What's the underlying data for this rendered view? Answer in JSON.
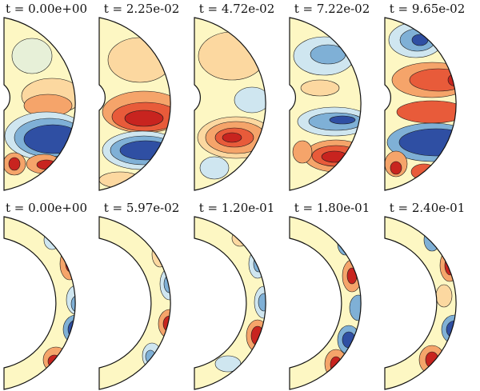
{
  "rows": [
    {
      "panels": [
        {
          "label": "t = 0.00e+00"
        },
        {
          "label": "t = 2.25e-02"
        },
        {
          "label": "t = 4.72e-02"
        },
        {
          "label": "t = 7.22e-02"
        },
        {
          "label": "t = 9.65e-02"
        }
      ]
    },
    {
      "panels": [
        {
          "label": "t = 0.00e+00"
        },
        {
          "label": "t = 5.97e-02"
        },
        {
          "label": "t = 1.20e-01"
        },
        {
          "label": "t = 1.80e-01"
        },
        {
          "label": "t = 2.40e-01"
        }
      ]
    }
  ],
  "colors": {
    "background": "#fdf7c3",
    "strong_red": "#c8241f",
    "red": "#e85b3a",
    "orange": "#f5a46a",
    "light_orange": "#fcd8a0",
    "light_blue": "#cfe6f0",
    "blue": "#7fb0d6",
    "dark_blue": "#2f4fa3",
    "contour": "#1a1a1a"
  }
}
